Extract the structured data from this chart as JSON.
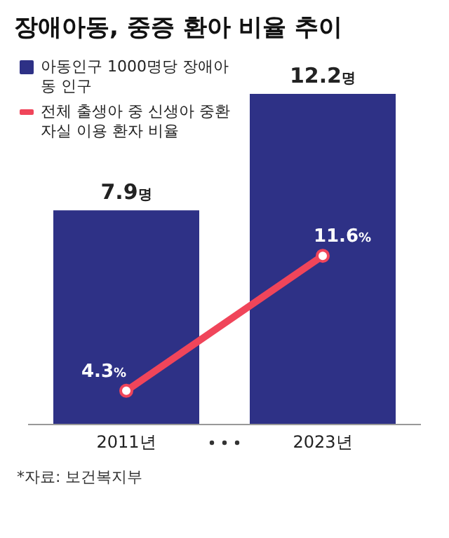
{
  "chart_data": {
    "type": "bar",
    "title": "장애아동, 중증 환아 비율 추이",
    "categories": [
      "2011년",
      "2023년"
    ],
    "series": [
      {
        "name": "아동인구 1000명당 장애아동 인구",
        "type": "bar",
        "color": "#2e3186",
        "values": [
          7.9,
          12.2
        ],
        "value_labels": [
          "7.9명",
          "12.2명"
        ]
      },
      {
        "name": "전체 출생아 중 신생아 중환자실 이용 환자 비율",
        "type": "line",
        "axis": "y2",
        "color": "#f0455a",
        "values": [
          4.3,
          11.6
        ],
        "value_labels": [
          "4.3%",
          "11.6%"
        ]
      }
    ],
    "marker": "circle",
    "line_style": "solid",
    "legend": "top left",
    "grid": false,
    "tick_labels": "x",
    "annotations": [
      "*자료: 보건복지부"
    ]
  }
}
